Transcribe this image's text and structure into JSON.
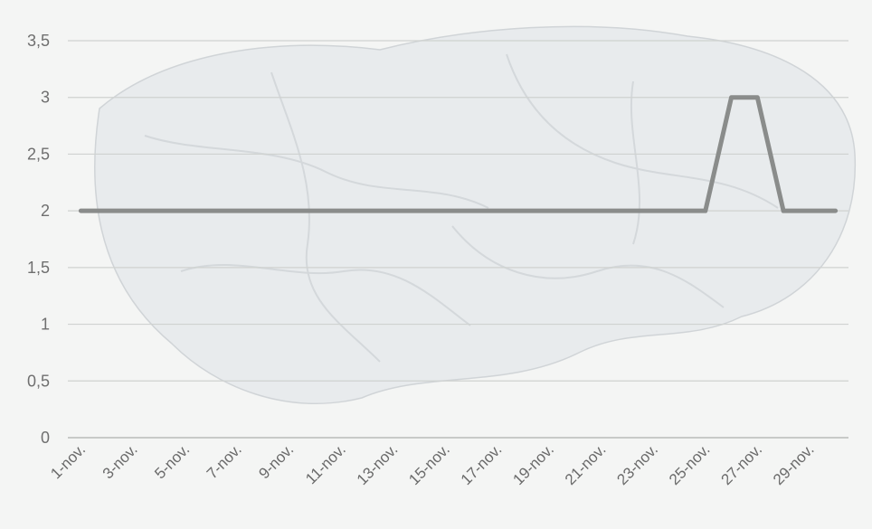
{
  "chart_data": {
    "type": "line",
    "title": "",
    "xlabel": "",
    "ylabel": "",
    "ylim": [
      0,
      3.5
    ],
    "y_ticks": [
      "0",
      "0,5",
      "1",
      "1,5",
      "2",
      "2,5",
      "3",
      "3,5"
    ],
    "y_tick_values": [
      0,
      0.5,
      1,
      1.5,
      2,
      2.5,
      3,
      3.5
    ],
    "grid": true,
    "legend": "none",
    "categories": [
      "1-nov.",
      "2-nov.",
      "3-nov.",
      "4-nov.",
      "5-nov.",
      "6-nov.",
      "7-nov.",
      "8-nov.",
      "9-nov.",
      "10-nov.",
      "11-nov.",
      "12-nov.",
      "13-nov.",
      "14-nov.",
      "15-nov.",
      "16-nov.",
      "17-nov.",
      "18-nov.",
      "19-nov.",
      "20-nov.",
      "21-nov.",
      "22-nov.",
      "23-nov.",
      "24-nov.",
      "25-nov.",
      "26-nov.",
      "27-nov.",
      "28-nov.",
      "29-nov.",
      "30-nov."
    ],
    "x_tick_labels": [
      "1-nov.",
      "3-nov.",
      "5-nov.",
      "7-nov.",
      "9-nov.",
      "11-nov.",
      "13-nov.",
      "15-nov.",
      "17-nov.",
      "19-nov.",
      "21-nov.",
      "23-nov.",
      "25-nov.",
      "27-nov.",
      "29-nov."
    ],
    "series": [
      {
        "values": [
          2,
          2,
          2,
          2,
          2,
          2,
          2,
          2,
          2,
          2,
          2,
          2,
          2,
          2,
          2,
          2,
          2,
          2,
          2,
          2,
          2,
          2,
          2,
          2,
          2,
          3,
          3,
          2,
          2,
          2
        ],
        "color": "#8a8c8b"
      }
    ]
  }
}
